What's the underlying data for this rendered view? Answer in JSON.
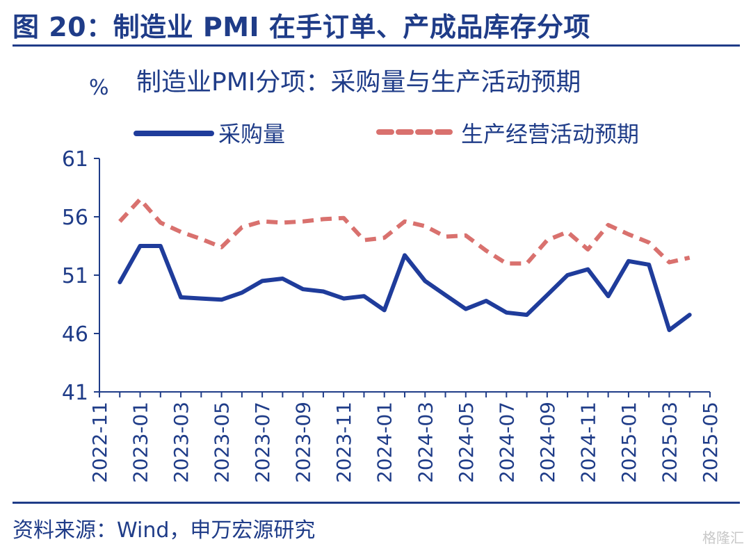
{
  "figure_title": "图 20：制造业 PMI 在手订单、产成品库存分项",
  "source": "资料来源：Wind，申万宏源研究",
  "watermark": "格隆汇",
  "colors": {
    "text": "#1f3c88",
    "purchase": "#1f3c9b",
    "expectation": "#d9716e",
    "axis": "#1f3c88"
  },
  "chart_data": {
    "type": "line",
    "title": "制造业PMI分项：采购量与生产活动预期",
    "ylabel": "%",
    "ylim": [
      41,
      61
    ],
    "yticks": [
      "41",
      "46",
      "51",
      "56",
      "61"
    ],
    "ytick_values": [
      41,
      46,
      51,
      56,
      61
    ],
    "grid": false,
    "legend": "top",
    "xtick_labels": [
      "2022-11",
      "2023-01",
      "2023-03",
      "2023-05",
      "2023-07",
      "2023-09",
      "2023-11",
      "2024-01",
      "2024-03",
      "2024-05",
      "2024-07",
      "2024-09",
      "2024-11",
      "2025-01",
      "2025-03",
      "2025-05"
    ],
    "x": [
      "2023-01",
      "2023-02",
      "2023-03",
      "2023-04",
      "2023-05",
      "2023-06",
      "2023-07",
      "2023-08",
      "2023-09",
      "2023-10",
      "2023-11",
      "2023-12",
      "2024-01",
      "2024-02",
      "2024-03",
      "2024-04",
      "2024-05",
      "2024-06",
      "2024-07",
      "2024-08",
      "2024-09",
      "2024-10",
      "2024-11",
      "2024-12",
      "2025-01",
      "2025-02",
      "2025-03",
      "2025-04",
      "2025-05"
    ],
    "series": [
      {
        "name": "采购量",
        "style": "solid",
        "values": [
          50.4,
          53.5,
          53.5,
          49.1,
          49.0,
          48.9,
          49.5,
          50.5,
          50.7,
          49.8,
          49.6,
          49.0,
          49.2,
          48.0,
          52.7,
          50.5,
          49.3,
          48.1,
          48.8,
          47.8,
          47.6,
          49.3,
          51.0,
          51.5,
          49.2,
          52.2,
          51.9,
          46.3,
          47.6
        ]
      },
      {
        "name": "生产经营活动预期",
        "style": "dashed",
        "values": [
          55.6,
          57.5,
          55.5,
          54.7,
          54.1,
          53.4,
          55.1,
          55.6,
          55.5,
          55.6,
          55.8,
          55.9,
          54.0,
          54.2,
          55.6,
          55.2,
          54.3,
          54.4,
          53.1,
          52.0,
          52.0,
          54.0,
          54.7,
          53.2,
          55.3,
          54.5,
          53.8,
          52.1,
          52.5
        ]
      }
    ]
  }
}
